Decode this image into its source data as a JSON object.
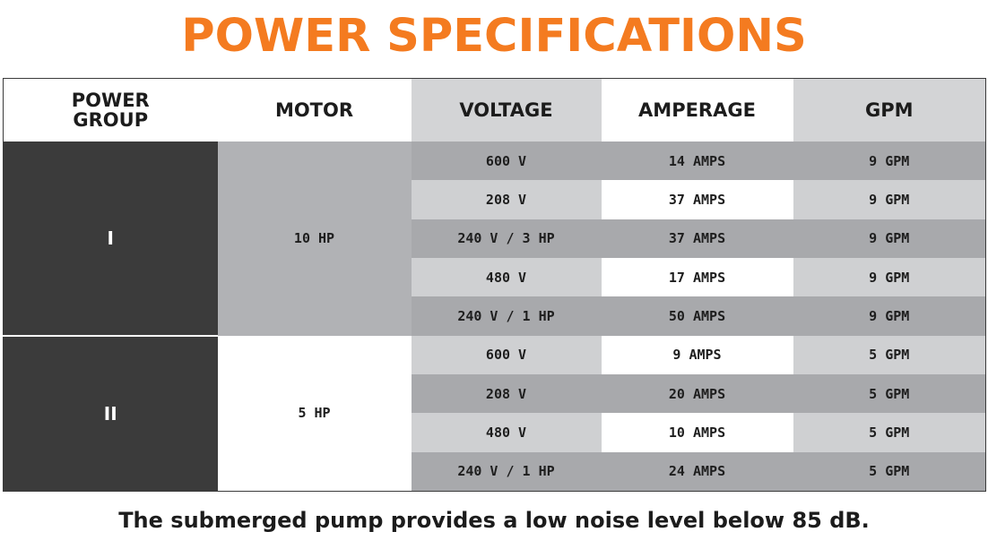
{
  "title": "POWER SPECIFICATIONS",
  "colors": {
    "title": "#f47b20",
    "group_cell": "#3b3b3b",
    "header_grey": "#d3d4d6",
    "row_dark": "#a8a9ac",
    "row_light": "#cfd0d2"
  },
  "table": {
    "headers": {
      "power_group": "POWER GROUP",
      "motor": "MOTOR",
      "voltage": "VOLTAGE",
      "amperage": "AMPERAGE",
      "gpm": "GPM"
    },
    "groups": [
      {
        "group": "I",
        "motor": "10 HP",
        "rows": [
          {
            "voltage": "600 V",
            "amperage": "14 AMPS",
            "gpm": "9 GPM"
          },
          {
            "voltage": "208 V",
            "amperage": "37 AMPS",
            "gpm": "9 GPM"
          },
          {
            "voltage": "240 V / 3 HP",
            "amperage": "37 AMPS",
            "gpm": "9 GPM"
          },
          {
            "voltage": "480 V",
            "amperage": "17 AMPS",
            "gpm": "9 GPM"
          },
          {
            "voltage": "240 V / 1 HP",
            "amperage": "50 AMPS",
            "gpm": "9 GPM"
          }
        ]
      },
      {
        "group": "II",
        "motor": "5 HP",
        "rows": [
          {
            "voltage": "600 V",
            "amperage": "9 AMPS",
            "gpm": "5 GPM"
          },
          {
            "voltage": "208 V",
            "amperage": "20 AMPS",
            "gpm": "5 GPM"
          },
          {
            "voltage": "480 V",
            "amperage": "10 AMPS",
            "gpm": "5 GPM"
          },
          {
            "voltage": "240 V / 1 HP",
            "amperage": "24 AMPS",
            "gpm": "5 GPM"
          }
        ]
      }
    ]
  },
  "footnote": "The submerged pump provides a low noise level below 85 dB."
}
